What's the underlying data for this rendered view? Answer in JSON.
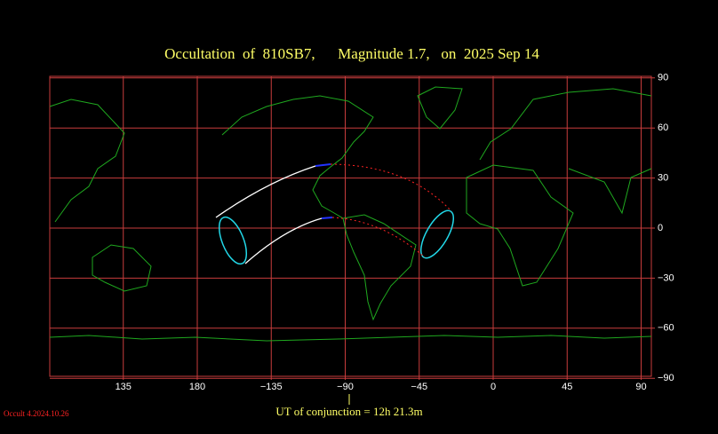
{
  "header": {
    "title": "Occultation  of  810SB7,      Magnitude 1.7,   on  2025 Sep 14"
  },
  "map": {
    "lon_ticks": [
      {
        "value": 135,
        "label": "135"
      },
      {
        "value": 180,
        "label": "180"
      },
      {
        "value": -135,
        "label": "−135"
      },
      {
        "value": -90,
        "label": "−90"
      },
      {
        "value": -45,
        "label": "−45"
      },
      0,
      45,
      90
    ],
    "lat_ticks": [
      90,
      60,
      30,
      0,
      {
        "value": -30,
        "label": "−30"
      },
      {
        "value": -60,
        "label": "−60"
      },
      {
        "value": -90,
        "label": "−90"
      }
    ]
  },
  "footer": {
    "conjunction": "UT of conjunction = 12h 21.3m",
    "version": "Occult 4.2024.10.26"
  }
}
